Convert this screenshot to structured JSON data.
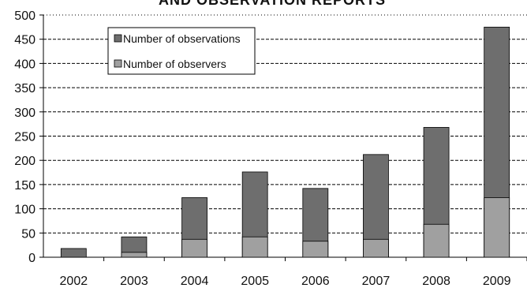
{
  "chart_data": {
    "type": "bar",
    "title": "AND OBSERVATION REPORTS",
    "categories": [
      "2002",
      "2003",
      "2004",
      "2005",
      "2006",
      "2007",
      "2008",
      "2009"
    ],
    "series": [
      {
        "name": "Number of observations",
        "color": "#6e6e6e",
        "values": [
          18,
          42,
          123,
          176,
          142,
          212,
          268,
          475
        ]
      },
      {
        "name": "Number of observers",
        "color": "#a0a0a0",
        "values": [
          0,
          10,
          37,
          42,
          33,
          37,
          68,
          123
        ]
      }
    ],
    "ylim": [
      0,
      500
    ],
    "yticks": [
      0,
      50,
      100,
      150,
      200,
      250,
      300,
      350,
      400,
      450,
      500
    ],
    "grid": true,
    "legend": "top-left"
  }
}
